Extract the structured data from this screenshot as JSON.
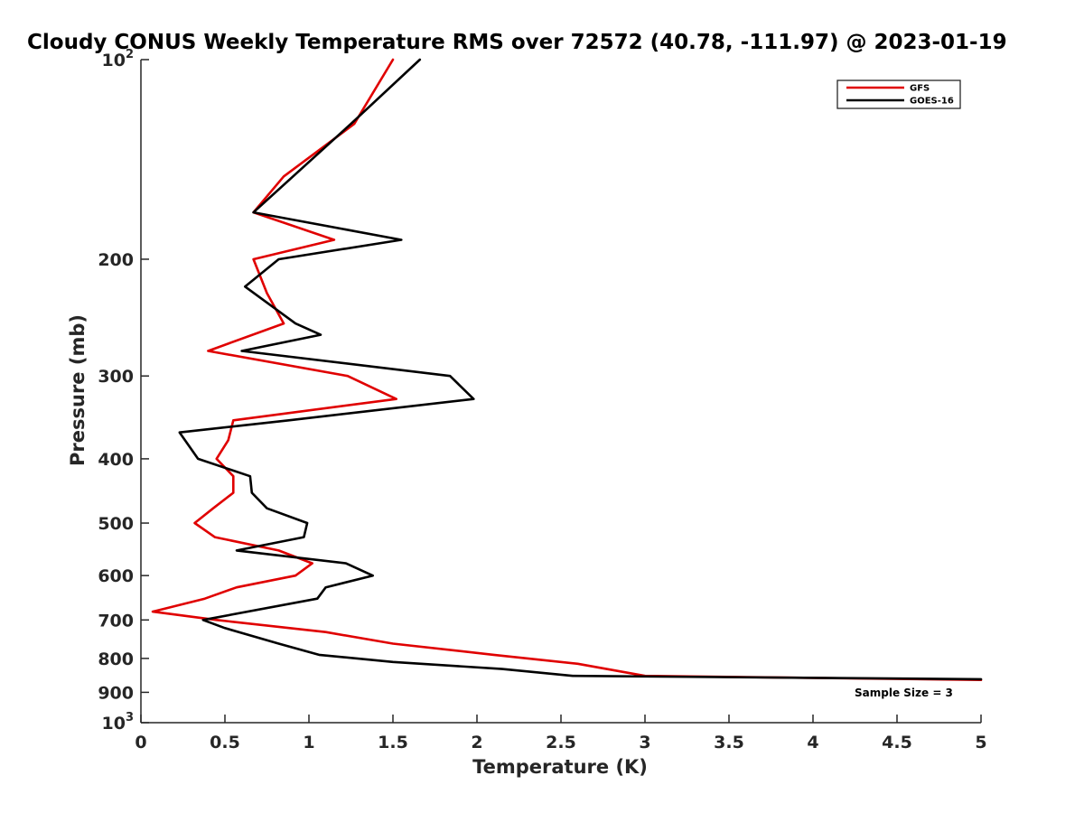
{
  "chart_data": {
    "type": "line",
    "title": "Cloudy CONUS Weekly Temperature RMS over 72572 (40.78, -111.97) @ 2023-01-19",
    "xlabel": "Temperature (K)",
    "ylabel": "Pressure (mb)",
    "xlim": [
      0,
      5
    ],
    "ylim": [
      100,
      1000
    ],
    "y_scale": "log",
    "y_reversed": true,
    "grid": false,
    "legend_position": "top-right",
    "x_ticks": [
      "0",
      "0.5",
      "1",
      "1.5",
      "2",
      "2.5",
      "3",
      "3.5",
      "4",
      "4.5",
      "5"
    ],
    "y_ticks": [
      {
        "value": 100,
        "base": "10",
        "exp": "2"
      },
      {
        "value": 200,
        "label": "200"
      },
      {
        "value": 300,
        "label": "300"
      },
      {
        "value": 400,
        "label": "400"
      },
      {
        "value": 500,
        "label": "500"
      },
      {
        "value": 600,
        "label": "600"
      },
      {
        "value": 700,
        "label": "700"
      },
      {
        "value": 800,
        "label": "800"
      },
      {
        "value": 900,
        "label": "900"
      },
      {
        "value": 1000,
        "base": "10",
        "exp": "3"
      }
    ],
    "annotation": "Sample Size = 3",
    "series": [
      {
        "name": "GFS",
        "color": "#e00000",
        "points": [
          [
            1.5,
            100
          ],
          [
            1.27,
            125
          ],
          [
            0.85,
            150
          ],
          [
            0.67,
            170
          ],
          [
            1.15,
            187
          ],
          [
            0.67,
            200
          ],
          [
            0.75,
            225
          ],
          [
            0.85,
            250
          ],
          [
            0.4,
            275
          ],
          [
            1.23,
            300
          ],
          [
            1.52,
            325
          ],
          [
            0.55,
            350
          ],
          [
            0.52,
            375
          ],
          [
            0.45,
            400
          ],
          [
            0.55,
            425
          ],
          [
            0.55,
            450
          ],
          [
            0.43,
            475
          ],
          [
            0.32,
            500
          ],
          [
            0.44,
            525
          ],
          [
            0.82,
            550
          ],
          [
            1.02,
            575
          ],
          [
            0.92,
            600
          ],
          [
            0.57,
            625
          ],
          [
            0.38,
            650
          ],
          [
            0.07,
            680
          ],
          [
            0.45,
            700
          ],
          [
            1.1,
            730
          ],
          [
            1.5,
            760
          ],
          [
            2.1,
            790
          ],
          [
            2.6,
            815
          ],
          [
            3.0,
            850
          ],
          [
            5.0,
            862
          ]
        ]
      },
      {
        "name": "GOES-16",
        "color": "#000000",
        "points": [
          [
            1.66,
            100
          ],
          [
            1.25,
            125
          ],
          [
            0.67,
            170
          ],
          [
            1.55,
            187
          ],
          [
            0.82,
            200
          ],
          [
            0.62,
            220
          ],
          [
            0.92,
            250
          ],
          [
            1.07,
            260
          ],
          [
            0.6,
            275
          ],
          [
            1.84,
            300
          ],
          [
            1.98,
            325
          ],
          [
            0.88,
            350
          ],
          [
            0.23,
            365
          ],
          [
            0.34,
            400
          ],
          [
            0.65,
            425
          ],
          [
            0.66,
            450
          ],
          [
            0.75,
            475
          ],
          [
            0.99,
            500
          ],
          [
            0.97,
            525
          ],
          [
            0.57,
            550
          ],
          [
            1.22,
            575
          ],
          [
            1.38,
            600
          ],
          [
            1.1,
            625
          ],
          [
            1.05,
            650
          ],
          [
            0.37,
            700
          ],
          [
            0.5,
            720
          ],
          [
            0.82,
            760
          ],
          [
            1.06,
            790
          ],
          [
            1.5,
            810
          ],
          [
            2.15,
            830
          ],
          [
            2.57,
            850
          ],
          [
            5.0,
            860
          ]
        ]
      }
    ]
  }
}
